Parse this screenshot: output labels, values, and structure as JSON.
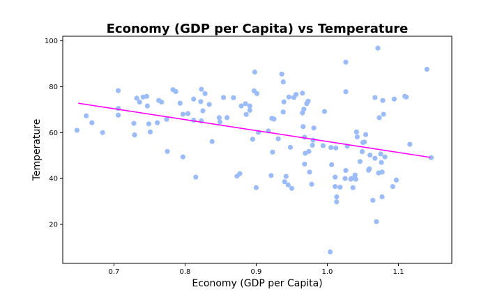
{
  "chart_data": {
    "type": "scatter",
    "title": "Economy (GDP per Capita) vs Temperature",
    "xlabel": "Economy (GDP per Capita)",
    "ylabel": "Temperature",
    "xlim": [
      0.628,
      1.175
    ],
    "ylim": [
      3,
      102
    ],
    "xticks": [
      0.7,
      0.8,
      0.9,
      1.0,
      1.1
    ],
    "xtick_labels": [
      "0.7",
      "0.8",
      "0.9",
      "1.0",
      "1.1"
    ],
    "yticks": [
      20,
      40,
      60,
      80,
      100
    ],
    "ytick_labels": [
      "20",
      "40",
      "60",
      "80",
      "100"
    ],
    "grid": false,
    "colors": {
      "points": "#9bbcf8",
      "trend": "#ff00ff"
    },
    "trend_line": {
      "x": [
        0.65,
        1.145
      ],
      "y": [
        72.8,
        49.2
      ]
    },
    "points": [
      {
        "x": 0.648,
        "y": 61
      },
      {
        "x": 0.661,
        "y": 67.3
      },
      {
        "x": 0.669,
        "y": 64.3
      },
      {
        "x": 0.684,
        "y": 60
      },
      {
        "x": 0.706,
        "y": 78.3
      },
      {
        "x": 0.706,
        "y": 70.5
      },
      {
        "x": 0.706,
        "y": 67.6
      },
      {
        "x": 0.728,
        "y": 64
      },
      {
        "x": 0.729,
        "y": 59
      },
      {
        "x": 0.732,
        "y": 75
      },
      {
        "x": 0.736,
        "y": 73.3
      },
      {
        "x": 0.741,
        "y": 75.5
      },
      {
        "x": 0.746,
        "y": 75.8
      },
      {
        "x": 0.747,
        "y": 71.6
      },
      {
        "x": 0.749,
        "y": 63.8
      },
      {
        "x": 0.751,
        "y": 60.3
      },
      {
        "x": 0.761,
        "y": 64.3
      },
      {
        "x": 0.763,
        "y": 74
      },
      {
        "x": 0.767,
        "y": 73.3
      },
      {
        "x": 0.774,
        "y": 65.8
      },
      {
        "x": 0.775,
        "y": 51.8
      },
      {
        "x": 0.783,
        "y": 78.7
      },
      {
        "x": 0.787,
        "y": 77.9
      },
      {
        "x": 0.793,
        "y": 72.8
      },
      {
        "x": 0.797,
        "y": 68
      },
      {
        "x": 0.797,
        "y": 49.4
      },
      {
        "x": 0.804,
        "y": 68.3
      },
      {
        "x": 0.812,
        "y": 74.6
      },
      {
        "x": 0.812,
        "y": 65.4
      },
      {
        "x": 0.815,
        "y": 40.6
      },
      {
        "x": 0.822,
        "y": 73.5
      },
      {
        "x": 0.823,
        "y": 78.9
      },
      {
        "x": 0.823,
        "y": 65.1
      },
      {
        "x": 0.825,
        "y": 69.5
      },
      {
        "x": 0.828,
        "y": 77
      },
      {
        "x": 0.834,
        "y": 72.3
      },
      {
        "x": 0.838,
        "y": 56.1
      },
      {
        "x": 0.848,
        "y": 66.5
      },
      {
        "x": 0.849,
        "y": 64.6
      },
      {
        "x": 0.854,
        "y": 75.3
      },
      {
        "x": 0.859,
        "y": 66.5
      },
      {
        "x": 0.868,
        "y": 75.2
      },
      {
        "x": 0.873,
        "y": 41
      },
      {
        "x": 0.877,
        "y": 42.1
      },
      {
        "x": 0.879,
        "y": 71.6
      },
      {
        "x": 0.885,
        "y": 72.6
      },
      {
        "x": 0.886,
        "y": 67.9
      },
      {
        "x": 0.891,
        "y": 69.7
      },
      {
        "x": 0.891,
        "y": 71.6
      },
      {
        "x": 0.895,
        "y": 57.1
      },
      {
        "x": 0.897,
        "y": 78.2
      },
      {
        "x": 0.898,
        "y": 86.4
      },
      {
        "x": 0.9,
        "y": 36
      },
      {
        "x": 0.901,
        "y": 77
      },
      {
        "x": 0.903,
        "y": 60.1
      },
      {
        "x": 0.917,
        "y": 60.7
      },
      {
        "x": 0.921,
        "y": 41.3
      },
      {
        "x": 0.922,
        "y": 66.2
      },
      {
        "x": 0.923,
        "y": 51.5
      },
      {
        "x": 0.925,
        "y": 65.9
      },
      {
        "x": 0.931,
        "y": 57.3
      },
      {
        "x": 0.936,
        "y": 85.5
      },
      {
        "x": 0.938,
        "y": 82.1
      },
      {
        "x": 0.938,
        "y": 69
      },
      {
        "x": 0.939,
        "y": 73.4
      },
      {
        "x": 0.94,
        "y": 38.6
      },
      {
        "x": 0.942,
        "y": 40.9
      },
      {
        "x": 0.945,
        "y": 37.2
      },
      {
        "x": 0.946,
        "y": 75.5
      },
      {
        "x": 0.948,
        "y": 53.6
      },
      {
        "x": 0.95,
        "y": 35.7
      },
      {
        "x": 0.953,
        "y": 75.3
      },
      {
        "x": 0.956,
        "y": 76.6
      },
      {
        "x": 0.965,
        "y": 77.2
      },
      {
        "x": 0.965,
        "y": 68.6
      },
      {
        "x": 0.966,
        "y": 62.6
      },
      {
        "x": 0.967,
        "y": 70.2
      },
      {
        "x": 0.968,
        "y": 58
      },
      {
        "x": 0.968,
        "y": 46.3
      },
      {
        "x": 0.969,
        "y": 51
      },
      {
        "x": 0.971,
        "y": 72.6
      },
      {
        "x": 0.973,
        "y": 73.7
      },
      {
        "x": 0.974,
        "y": 51.8
      },
      {
        "x": 0.975,
        "y": 42.8
      },
      {
        "x": 0.978,
        "y": 37.5
      },
      {
        "x": 0.979,
        "y": 54.5
      },
      {
        "x": 0.981,
        "y": 62
      },
      {
        "x": 0.98,
        "y": 56.7
      },
      {
        "x": 0.994,
        "y": 54.3
      },
      {
        "x": 0.996,
        "y": 69.2
      },
      {
        "x": 1.004,
        "y": 8
      },
      {
        "x": 1.005,
        "y": 53.5
      },
      {
        "x": 1.006,
        "y": 46
      },
      {
        "x": 1.011,
        "y": 36.5
      },
      {
        "x": 1.011,
        "y": 40.6
      },
      {
        "x": 1.012,
        "y": 53.3
      },
      {
        "x": 1.013,
        "y": 32
      },
      {
        "x": 1.013,
        "y": 29.8
      },
      {
        "x": 1.018,
        "y": 36.2
      },
      {
        "x": 1.025,
        "y": 40
      },
      {
        "x": 1.026,
        "y": 77.8
      },
      {
        "x": 1.026,
        "y": 90.7
      },
      {
        "x": 1.026,
        "y": 43.5
      },
      {
        "x": 1.028,
        "y": 54.1
      },
      {
        "x": 1.033,
        "y": 39.7
      },
      {
        "x": 1.034,
        "y": 40
      },
      {
        "x": 1.036,
        "y": 36
      },
      {
        "x": 1.039,
        "y": 41.5
      },
      {
        "x": 1.04,
        "y": 39.7
      },
      {
        "x": 1.041,
        "y": 60.3
      },
      {
        "x": 1.042,
        "y": 58.1
      },
      {
        "x": 1.046,
        "y": 47.4
      },
      {
        "x": 1.049,
        "y": 51.7
      },
      {
        "x": 1.05,
        "y": 55.7
      },
      {
        "x": 1.052,
        "y": 55.9
      },
      {
        "x": 1.054,
        "y": 59.1
      },
      {
        "x": 1.058,
        "y": 43.6
      },
      {
        "x": 1.059,
        "y": 44.2
      },
      {
        "x": 1.06,
        "y": 50.2
      },
      {
        "x": 1.064,
        "y": 30.5
      },
      {
        "x": 1.067,
        "y": 75.3
      },
      {
        "x": 1.067,
        "y": 48.8
      },
      {
        "x": 1.069,
        "y": 21.2
      },
      {
        "x": 1.071,
        "y": 96.8
      },
      {
        "x": 1.072,
        "y": 42.4
      },
      {
        "x": 1.073,
        "y": 66.5
      },
      {
        "x": 1.075,
        "y": 50.7
      },
      {
        "x": 1.076,
        "y": 47
      },
      {
        "x": 1.077,
        "y": 42.8
      },
      {
        "x": 1.077,
        "y": 32
      },
      {
        "x": 1.078,
        "y": 74
      },
      {
        "x": 1.079,
        "y": 68
      },
      {
        "x": 1.081,
        "y": 49.4
      },
      {
        "x": 1.092,
        "y": 36.5
      },
      {
        "x": 1.094,
        "y": 74.6
      },
      {
        "x": 1.097,
        "y": 39.3
      },
      {
        "x": 1.109,
        "y": 75.8
      },
      {
        "x": 1.111,
        "y": 75.5
      },
      {
        "x": 1.116,
        "y": 54.9
      },
      {
        "x": 1.14,
        "y": 87.6
      },
      {
        "x": 1.146,
        "y": 49.1
      }
    ]
  }
}
